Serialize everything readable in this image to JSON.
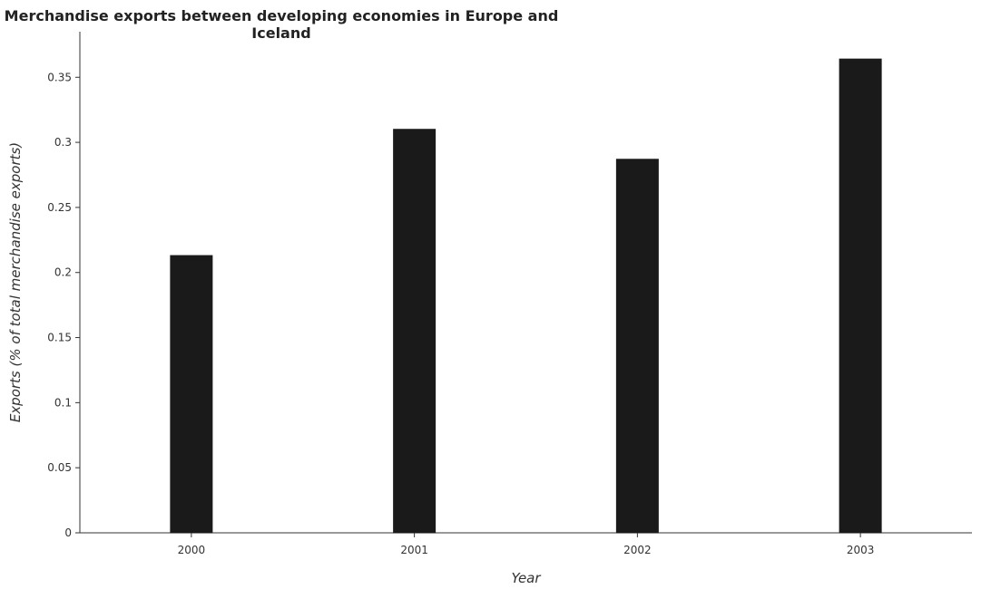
{
  "chart_data": {
    "type": "bar",
    "title": "Merchandise exports between developing economies in Europe and Iceland",
    "xlabel": "Year",
    "ylabel": "Exports (% of total merchandise exports)",
    "categories": [
      "2000",
      "2001",
      "2002",
      "2003"
    ],
    "values": [
      0.213,
      0.31,
      0.287,
      0.364
    ],
    "ylim": [
      0,
      0.385
    ],
    "yticks": [
      "0",
      "0.05",
      "0.1",
      "0.15",
      "0.2",
      "0.25",
      "0.3",
      "0.35"
    ],
    "ytick_values": [
      0,
      0.05,
      0.1,
      0.15,
      0.2,
      0.25,
      0.3,
      0.35
    ],
    "grid": false,
    "bar_color": "#1a1a1a"
  }
}
